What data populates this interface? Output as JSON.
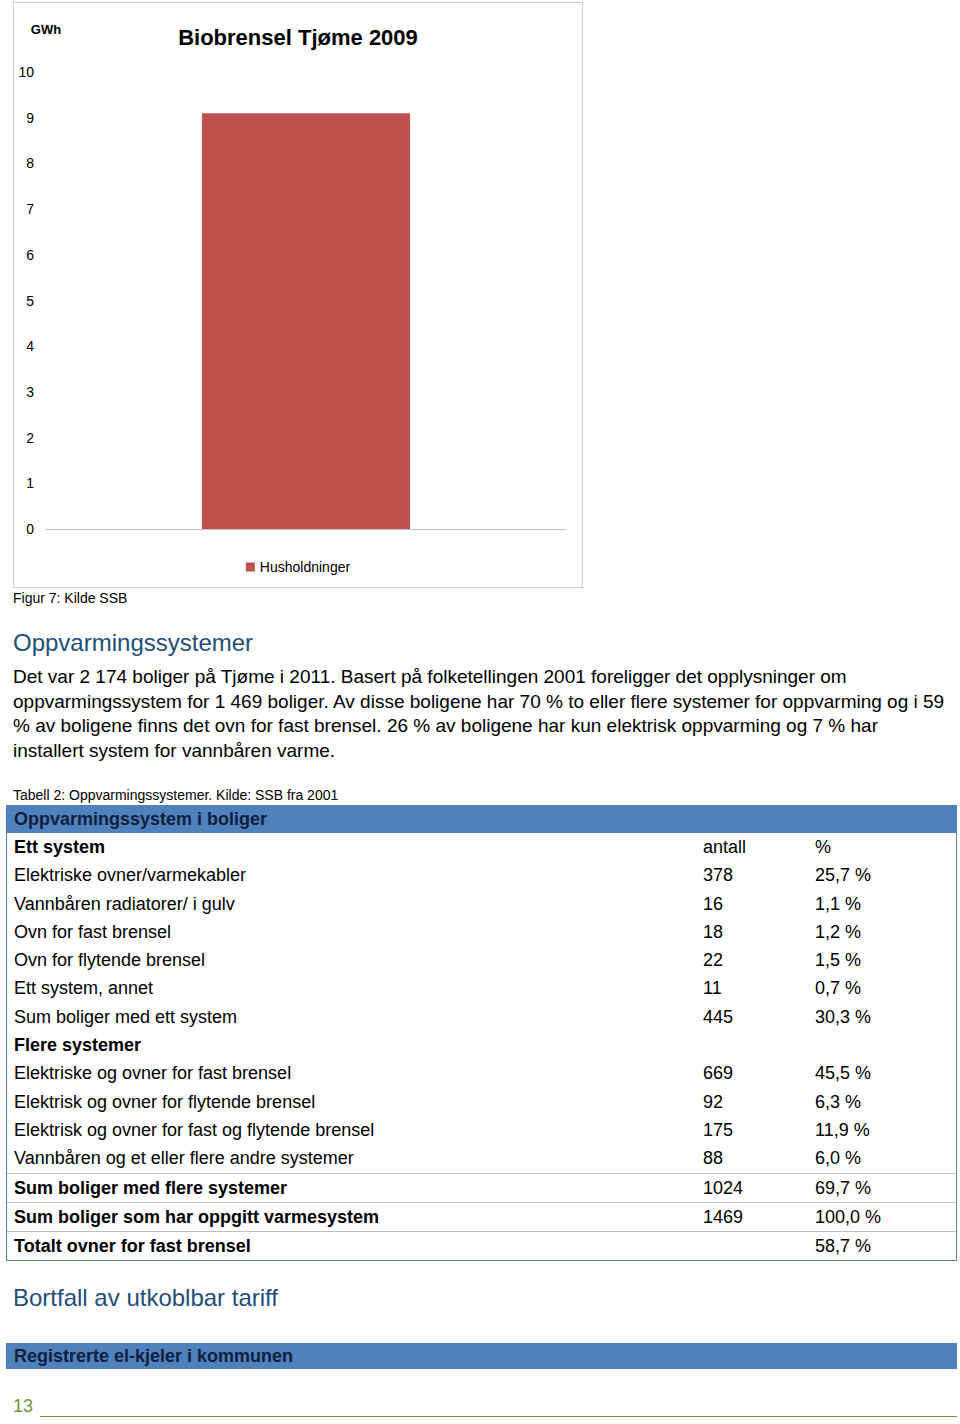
{
  "chart_data": {
    "type": "bar",
    "title": "Biobrensel Tjøme 2009",
    "ylabel": "GWh",
    "categories": [
      null
    ],
    "series": [
      {
        "name": "Husholdninger",
        "color": "#c0504d",
        "values": [
          9.1
        ]
      }
    ],
    "ylim": [
      0,
      10
    ],
    "yticks": [
      0,
      1,
      2,
      3,
      4,
      5,
      6,
      7,
      8,
      9,
      10
    ],
    "grid": false,
    "legend": "bottom"
  },
  "document": {
    "figure_caption": "Figur 7: Kilde SSB",
    "heading": "Oppvarmingssystemer",
    "paragraph": "Det var 2 174 boliger på Tjøme i 2011. Basert på folketellingen 2001 foreligger det opplysninger om oppvarmingssystem for 1 469 boliger. Av disse boligene har 70 % to eller flere systemer for oppvarming og i 59 % av boligene finns det ovn for fast brensel. 26 % av boligene har kun elektrisk oppvarming og 7 % har installert system for vannbåren varme.",
    "table": {
      "caption": "Tabell 2: Oppvarmingssystemer. Kilde: SSB fra 2001",
      "header": "Oppvarmingssystem i boliger",
      "rows": [
        {
          "cells": [
            "Ett system",
            "antall",
            "%"
          ],
          "bold": true
        },
        {
          "cells": [
            "Elektriske ovner/varmekabler",
            "378",
            "25,7 %"
          ],
          "bold": false
        },
        {
          "cells": [
            "Vannbåren radiatorer/ i gulv",
            "16",
            "1,1 %"
          ],
          "bold": false
        },
        {
          "cells": [
            "Ovn for fast brensel",
            "18",
            "1,2 %"
          ],
          "bold": false
        },
        {
          "cells": [
            "Ovn for flytende brensel",
            "22",
            "1,5 %"
          ],
          "bold": false
        },
        {
          "cells": [
            "Ett system, annet",
            "11",
            "0,7 %"
          ],
          "bold": false
        },
        {
          "cells": [
            "Sum boliger med ett system",
            "445",
            "30,3 %"
          ],
          "bold": false
        },
        {
          "cells": [
            "Flere systemer",
            null,
            null
          ],
          "bold": true
        },
        {
          "cells": [
            "Elektriske og ovner for fast brensel",
            "669",
            "45,5 %"
          ],
          "bold": false
        },
        {
          "cells": [
            "Elektrisk og ovner for flytende brensel",
            "92",
            "6,3 %"
          ],
          "bold": false
        },
        {
          "cells": [
            "Elektrisk og ovner for fast og flytende brensel",
            "175",
            "11,9 %"
          ],
          "bold": false
        },
        {
          "cells": [
            "Vannbåren og et eller flere andre systemer",
            "88",
            "6,0 %"
          ],
          "bold": false
        },
        {
          "cells": [
            "Sum boliger med flere systemer",
            "1024",
            "69,7 %"
          ],
          "bold": true
        },
        {
          "cells": [
            "Sum boliger som har oppgitt varmesystem",
            "1469",
            "100,0 %"
          ],
          "bold": true
        },
        {
          "cells": [
            "Totalt ovner for fast brensel",
            null,
            "58,7 %"
          ],
          "bold": true
        }
      ]
    },
    "heading2": "Bortfall av utkoblbar tariff",
    "bar_heading": "Registrerte el-kjeler i kommunen",
    "page_number": "13"
  }
}
